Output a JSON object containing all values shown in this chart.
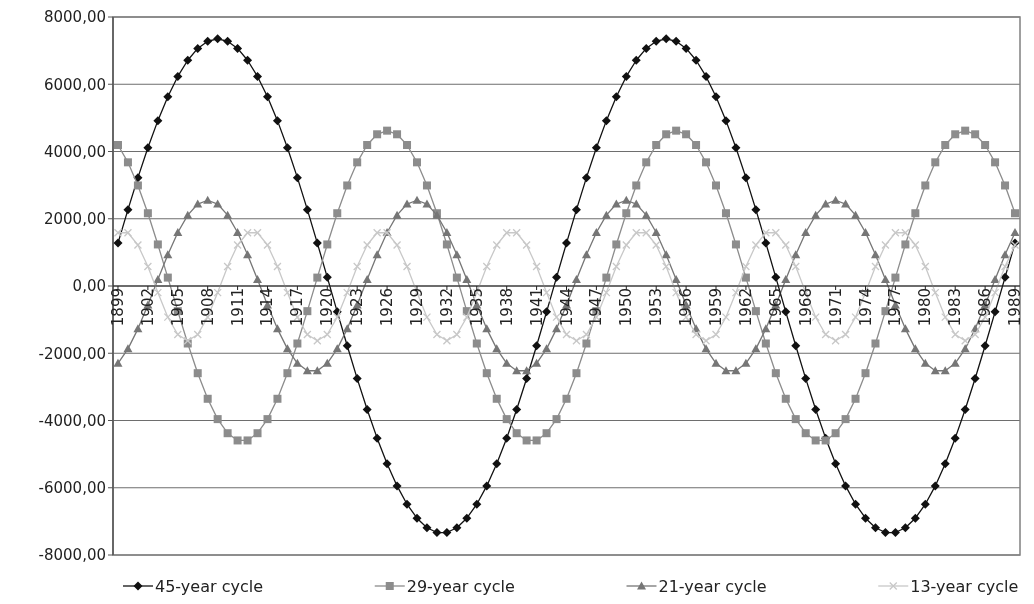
{
  "chart_data": {
    "type": "line",
    "categories": [
      "1899",
      null,
      null,
      "1902",
      null,
      null,
      "1905",
      null,
      null,
      "1908",
      null,
      null,
      "1911",
      null,
      null,
      "1914",
      null,
      null,
      "1917",
      null,
      null,
      "1920",
      null,
      null,
      "1923",
      null,
      null,
      "1926",
      null,
      null,
      "1929",
      null,
      null,
      "1932",
      null,
      null,
      "1935",
      null,
      null,
      "1938",
      null,
      null,
      "1941",
      null,
      null,
      "1944",
      null,
      null,
      "1947",
      null,
      null,
      "1950",
      null,
      null,
      "1953",
      null,
      null,
      "1956",
      null,
      null,
      "1959",
      null,
      null,
      "1962",
      null,
      null,
      "1965",
      null,
      null,
      "1968",
      null,
      null,
      "1971",
      null,
      null,
      "1974",
      null,
      null,
      "1977",
      null,
      null,
      "1980",
      null,
      null,
      "1983",
      null,
      null,
      "1986",
      null,
      null,
      "1989"
    ],
    "series": [
      {
        "name": "45-year cycle",
        "color": "#111111",
        "marker": "diamond",
        "values": [
          1276,
          2271,
          3222,
          4110,
          4918,
          5630,
          6233,
          6714,
          7065,
          7279,
          7350,
          7279,
          7065,
          6714,
          6233,
          5630,
          4918,
          4110,
          3222,
          2271,
          1276,
          257,
          -768,
          -1778,
          -2753,
          -3675,
          -4525,
          -5287,
          -5946,
          -6489,
          -6907,
          -7189,
          -7332,
          -7332,
          -7189,
          -6907,
          -6489,
          -5946,
          -5287,
          -4525,
          -3675,
          -2753,
          -1778,
          -768,
          257,
          1276,
          2271,
          3222,
          4110,
          4918,
          5630,
          6233,
          6714,
          7065,
          7279,
          7350,
          7279,
          7065,
          6714,
          6233,
          5630,
          4918,
          4110,
          3222,
          2271,
          1276,
          257,
          -768,
          -1778,
          -2753,
          -3675,
          -4525,
          -5287,
          -5946,
          -6489,
          -6907,
          -7189,
          -7332,
          -7332,
          -7189,
          -6907,
          -6489,
          -5946,
          -5287,
          -4525,
          -3675,
          -2753,
          -1778,
          -768,
          257,
          1276
        ]
      },
      {
        "name": "29-year cycle",
        "color": "#8c8c8c",
        "marker": "square",
        "values": [
          4193,
          3678,
          2990,
          2164,
          1236,
          250,
          -748,
          -1710,
          -2593,
          -3354,
          -3959,
          -4378,
          -4593,
          -4593,
          -4378,
          -3959,
          -3354,
          -2593,
          -1710,
          -748,
          250,
          1236,
          2164,
          2990,
          3678,
          4193,
          4512,
          4620,
          4512,
          4193,
          3678,
          2990,
          2164,
          1236,
          250,
          -748,
          -1710,
          -2593,
          -3354,
          -3959,
          -4378,
          -4593,
          -4593,
          -4378,
          -3959,
          -3354,
          -2593,
          -1710,
          -748,
          250,
          1236,
          2164,
          2990,
          3678,
          4193,
          4512,
          4620,
          4512,
          4193,
          3678,
          2990,
          2164,
          1236,
          250,
          -748,
          -1710,
          -2593,
          -3354,
          -3959,
          -4378,
          -4593,
          -4593,
          -4378,
          -3959,
          -3354,
          -2593,
          -1710,
          -748,
          250,
          1236,
          2164,
          2990,
          3678,
          4193,
          4512,
          4620,
          4512,
          4193,
          3678,
          2990,
          2164
        ]
      },
      {
        "name": "21-year cycle",
        "color": "#767676",
        "marker": "triangle",
        "values": [
          -2298,
          -1869,
          -1275,
          -567,
          191,
          932,
          1590,
          2107,
          2437,
          2550,
          2437,
          2107,
          1590,
          932,
          191,
          -567,
          -1275,
          -1869,
          -2298,
          -2521,
          -2521,
          -2298,
          -1869,
          -1275,
          -567,
          191,
          932,
          1590,
          2107,
          2437,
          2550,
          2437,
          2107,
          1590,
          932,
          191,
          -567,
          -1275,
          -1869,
          -2298,
          -2521,
          -2521,
          -2298,
          -1869,
          -1275,
          -567,
          191,
          932,
          1590,
          2107,
          2437,
          2550,
          2437,
          2107,
          1590,
          932,
          191,
          -567,
          -1275,
          -1869,
          -2298,
          -2521,
          -2521,
          -2298,
          -1869,
          -1275,
          -567,
          191,
          932,
          1590,
          2107,
          2437,
          2550,
          2437,
          2107,
          1590,
          932,
          191,
          -567,
          -1275,
          -1869,
          -2298,
          -2521,
          -2521,
          -2298,
          -1869,
          -1275,
          -567,
          191,
          932,
          1590
        ]
      },
      {
        "name": "13-year cycle",
        "color": "#c8c8c8",
        "marker": "cross",
        "values": [
          1583,
          1583,
          1220,
          578,
          -196,
          -926,
          -1443,
          -1630,
          -1443,
          -926,
          -196,
          578,
          1220,
          1583,
          1583,
          1220,
          578,
          -196,
          -926,
          -1443,
          -1630,
          -1443,
          -926,
          -196,
          578,
          1220,
          1583,
          1583,
          1220,
          578,
          -196,
          -926,
          -1443,
          -1630,
          -1443,
          -926,
          -196,
          578,
          1220,
          1583,
          1583,
          1220,
          578,
          -196,
          -926,
          -1443,
          -1630,
          -1443,
          -926,
          -196,
          578,
          1220,
          1583,
          1583,
          1220,
          578,
          -196,
          -926,
          -1443,
          -1630,
          -1443,
          -926,
          -196,
          578,
          1220,
          1583,
          1583,
          1220,
          578,
          -196,
          -926,
          -1443,
          -1630,
          -1443,
          -926,
          -196,
          578,
          1220,
          1583,
          1583,
          1220,
          578,
          -196,
          -926,
          -1443,
          -1630,
          -1443,
          -926,
          -196,
          578,
          1220
        ]
      }
    ],
    "ylim": [
      -8000,
      8000
    ],
    "yticks": [
      {
        "value": -8000,
        "label": "-8000,00"
      },
      {
        "value": -6000,
        "label": "-6000,00"
      },
      {
        "value": -4000,
        "label": "-4000,00"
      },
      {
        "value": -2000,
        "label": "-2000,00"
      },
      {
        "value": 0,
        "label": "0,00"
      },
      {
        "value": 2000,
        "label": "2000,00"
      },
      {
        "value": 4000,
        "label": "4000,00"
      },
      {
        "value": 6000,
        "label": "6000,00"
      },
      {
        "value": 8000,
        "label": "8000,00"
      }
    ],
    "grid": "y",
    "legend": "bottom",
    "line_style": "solid"
  }
}
